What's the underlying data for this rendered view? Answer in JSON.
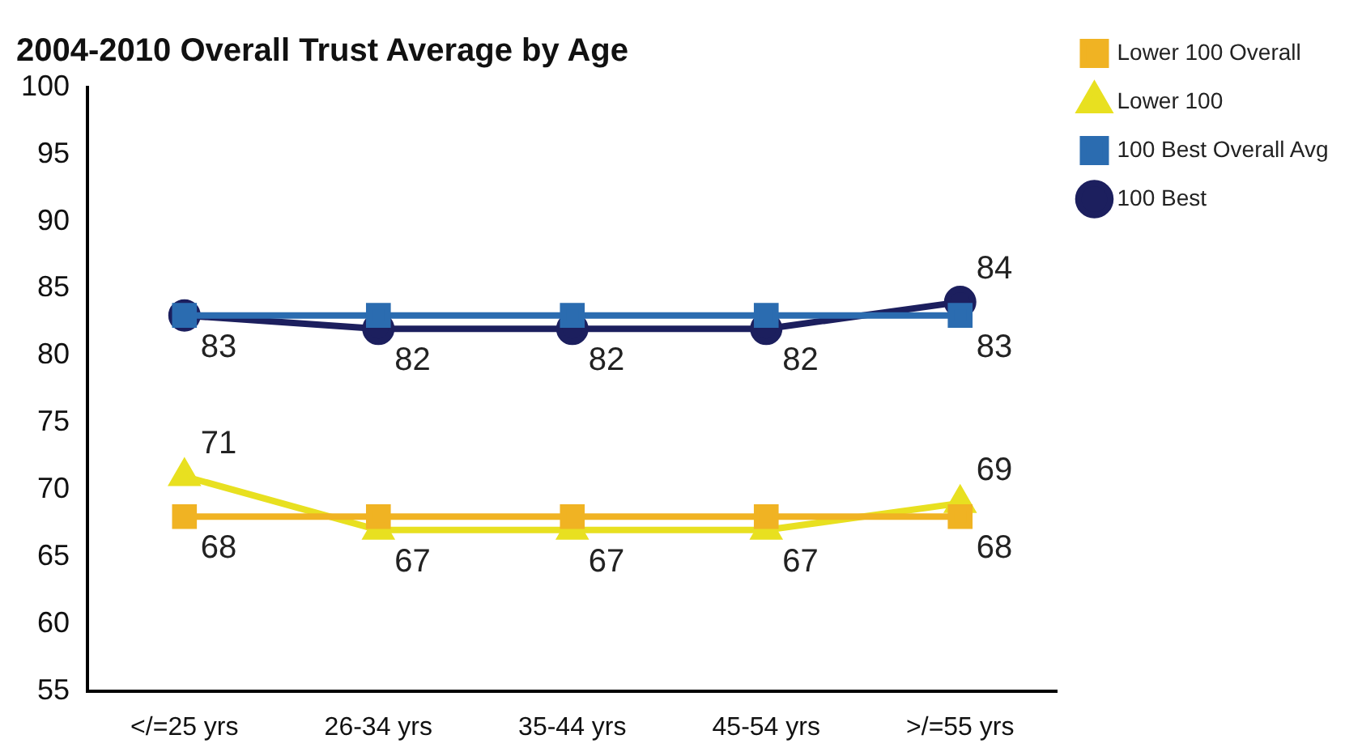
{
  "chart_data": {
    "type": "line",
    "title": "2004-2010 Overall Trust Average by Age",
    "categories": [
      "</=25 yrs",
      "26-34 yrs",
      "35-44 yrs",
      "45-54 yrs",
      ">/=55 yrs"
    ],
    "series": [
      {
        "name": "100 Best",
        "color": "#1c1f5e",
        "marker": "circle",
        "values": [
          83,
          82,
          82,
          82,
          84
        ],
        "value_labels": [
          "83",
          "82",
          "82",
          "82",
          "84"
        ]
      },
      {
        "name": "100 Best Overall Avg",
        "color": "#2b6cb0",
        "marker": "square",
        "values": [
          83,
          83,
          83,
          83,
          83
        ],
        "value_labels": [
          null,
          null,
          null,
          null,
          "83"
        ]
      },
      {
        "name": "Lower 100",
        "color": "#e8e020",
        "marker": "triangle",
        "values": [
          71,
          67,
          67,
          67,
          69
        ],
        "value_labels": [
          "71",
          "67",
          "67",
          "67",
          "69"
        ]
      },
      {
        "name": "Lower 100 Overall",
        "color": "#f0b323",
        "marker": "square",
        "values": [
          68,
          68,
          68,
          68,
          68
        ],
        "value_labels": [
          "68",
          null,
          null,
          null,
          "68"
        ]
      }
    ],
    "ylim": [
      55,
      100
    ],
    "yticks": [
      55,
      60,
      65,
      70,
      75,
      80,
      85,
      90,
      95,
      100
    ],
    "grid": false,
    "legend": "right",
    "line_style": "solid"
  }
}
